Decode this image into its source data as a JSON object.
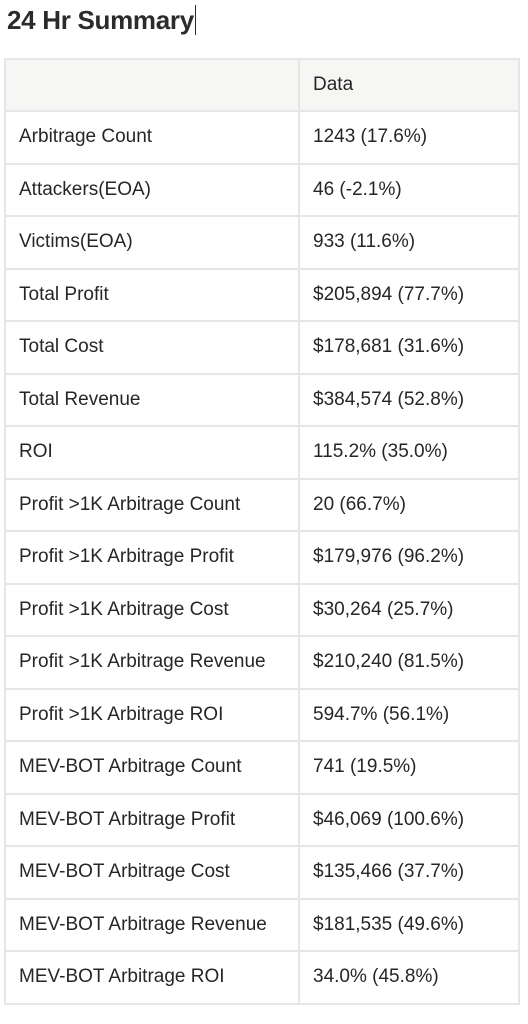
{
  "page": {
    "title": "24 Hr Summary"
  },
  "table": {
    "headers": [
      "",
      "Data"
    ],
    "rows": [
      {
        "metric": "Arbitrage Count",
        "value": "1243 (17.6%)"
      },
      {
        "metric": "Attackers(EOA)",
        "value": "46 (-2.1%)"
      },
      {
        "metric": "Victims(EOA)",
        "value": "933 (11.6%)"
      },
      {
        "metric": "Total Profit",
        "value": "$205,894 (77.7%)"
      },
      {
        "metric": "Total Cost",
        "value": "$178,681 (31.6%)"
      },
      {
        "metric": "Total Revenue",
        "value": "$384,574 (52.8%)"
      },
      {
        "metric": "ROI",
        "value": "115.2% (35.0%)"
      },
      {
        "metric": "Profit >1K Arbitrage Count",
        "value": "20 (66.7%)"
      },
      {
        "metric": "Profit >1K Arbitrage Profit",
        "value": "$179,976 (96.2%)"
      },
      {
        "metric": "Profit >1K Arbitrage Cost",
        "value": "$30,264 (25.7%)"
      },
      {
        "metric": "Profit >1K Arbitrage Revenue",
        "value": "$210,240 (81.5%)"
      },
      {
        "metric": "Profit >1K Arbitrage ROI",
        "value": "594.7% (56.1%)"
      },
      {
        "metric": "MEV-BOT Arbitrage Count",
        "value": "741 (19.5%)"
      },
      {
        "metric": "MEV-BOT Arbitrage Profit",
        "value": "$46,069 (100.6%)"
      },
      {
        "metric": "MEV-BOT Arbitrage Cost",
        "value": "$135,466 (37.7%)"
      },
      {
        "metric": "MEV-BOT Arbitrage Revenue",
        "value": "$181,535 (49.6%)"
      },
      {
        "metric": "MEV-BOT Arbitrage ROI",
        "value": "34.0% (45.8%)"
      }
    ]
  }
}
